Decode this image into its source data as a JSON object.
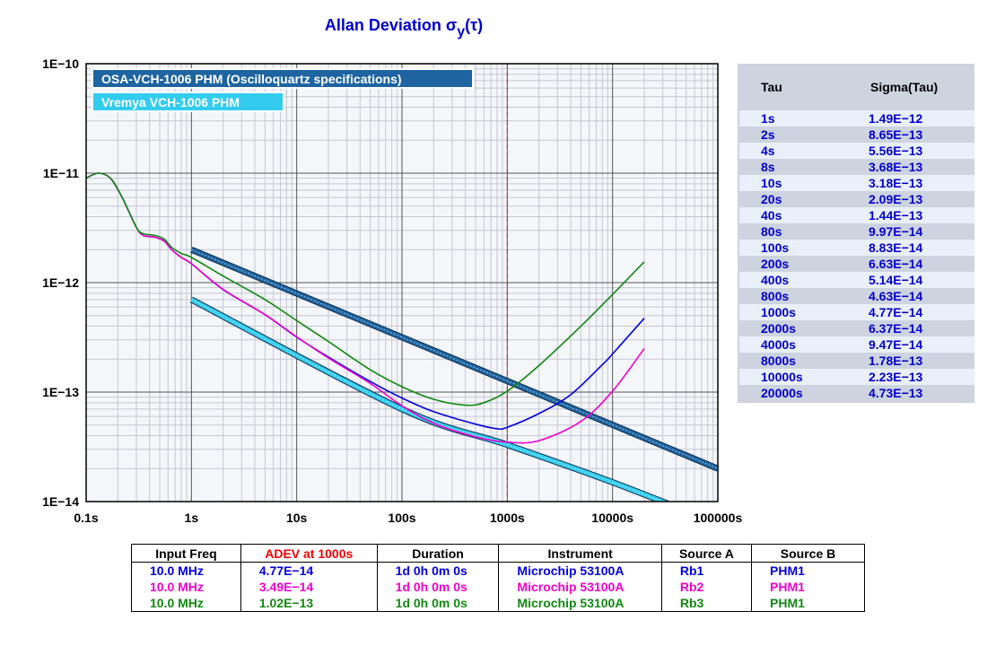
{
  "chart_data": {
    "type": "line",
    "title": "Allan Deviation",
    "title_symbol": "σ",
    "title_subscript": "y",
    "title_suffix": "(τ)",
    "x_scale": "log",
    "y_scale": "log",
    "xlim": [
      0.1,
      100000
    ],
    "ylim": [
      1e-14,
      1e-10
    ],
    "x_ticks": [
      {
        "value": 0.1,
        "label": "0.1s"
      },
      {
        "value": 1,
        "label": "1s"
      },
      {
        "value": 10,
        "label": "10s"
      },
      {
        "value": 100,
        "label": "100s"
      },
      {
        "value": 1000,
        "label": "1000s"
      },
      {
        "value": 10000,
        "label": "10000s"
      },
      {
        "value": 100000,
        "label": "100000s"
      }
    ],
    "y_ticks": [
      {
        "value": 1e-10,
        "label": "1E−10"
      },
      {
        "value": 1e-11,
        "label": "1E−11"
      },
      {
        "value": 1e-12,
        "label": "1E−12"
      },
      {
        "value": 1e-13,
        "label": "1E−13"
      },
      {
        "value": 1e-14,
        "label": "1E−14"
      }
    ],
    "grid": true,
    "marker_line_x": 1000,
    "legend_placement": "top-left",
    "legend": [
      {
        "label": "OSA-VCH-1006 PHM (Oscilloquartz specifications)",
        "color": "#1e64a0"
      },
      {
        "label": "Vremya VCH-1006 PHM",
        "color": "#33ccee"
      }
    ],
    "series": [
      {
        "name": "Rb1",
        "color": "#0000dd",
        "x": [
          0.1,
          0.13,
          0.17,
          0.22,
          0.3,
          0.35,
          0.45,
          0.55,
          0.65,
          0.8,
          1,
          2,
          5,
          10,
          20,
          50,
          100,
          200,
          500,
          800,
          1000,
          2000,
          4000,
          8000,
          10000,
          20000
        ],
        "y": [
          9e-12,
          1e-11,
          9e-12,
          6e-12,
          3.2e-12,
          2.7e-12,
          2.6e-12,
          2.4e-12,
          2e-12,
          1.7e-12,
          1.49e-12,
          8.65e-13,
          5.1e-13,
          3.18e-13,
          2.09e-13,
          1.25e-13,
          8.83e-14,
          6.63e-14,
          5.1e-14,
          4.63e-14,
          4.77e-14,
          6.37e-14,
          9.47e-14,
          1.78e-13,
          2.23e-13,
          4.73e-13
        ]
      },
      {
        "name": "Rb2",
        "color": "#ee00cc",
        "x": [
          0.1,
          0.13,
          0.17,
          0.22,
          0.3,
          0.35,
          0.45,
          0.55,
          0.65,
          0.8,
          1,
          2,
          5,
          10,
          20,
          50,
          100,
          200,
          500,
          1000,
          2000,
          5000,
          10000,
          20000
        ],
        "y": [
          9e-12,
          1e-11,
          9e-12,
          6e-12,
          3.2e-12,
          2.7e-12,
          2.6e-12,
          2.4e-12,
          2e-12,
          1.7e-12,
          1.49e-12,
          8.7e-13,
          5.1e-13,
          3.2e-13,
          2.05e-13,
          1.2e-13,
          7.5e-14,
          5.2e-14,
          3.9e-14,
          3.49e-14,
          3.6e-14,
          5.4e-14,
          1.02e-13,
          2.5e-13
        ]
      },
      {
        "name": "Rb3",
        "color": "#118811",
        "x": [
          0.1,
          0.13,
          0.17,
          0.22,
          0.3,
          0.35,
          0.45,
          0.55,
          0.65,
          0.8,
          1,
          2,
          5,
          10,
          20,
          50,
          100,
          200,
          400,
          600,
          1000,
          2000,
          5000,
          10000,
          20000
        ],
        "y": [
          9e-12,
          1e-11,
          9e-12,
          6e-12,
          3.2e-12,
          2.8e-12,
          2.7e-12,
          2.5e-12,
          2.1e-12,
          1.85e-12,
          1.7e-12,
          1.15e-12,
          7e-13,
          4.5e-13,
          2.9e-13,
          1.6e-13,
          1.12e-13,
          8.6e-14,
          7.6e-14,
          8e-14,
          1.02e-13,
          1.75e-13,
          4e-13,
          7.8e-13,
          1.55e-12
        ]
      },
      {
        "name": "OSA-VCH-1006 PHM (Oscilloquartz specifications)",
        "color": "#1e64a0",
        "band": true,
        "x": [
          1,
          100000
        ],
        "y": [
          2e-12,
          2e-14
        ]
      },
      {
        "name": "Vremya VCH-1006 PHM",
        "color": "#33ccee",
        "band": true,
        "x": [
          1,
          100,
          1000,
          10000,
          100000
        ],
        "y": [
          7e-13,
          7e-14,
          3.3e-14,
          1.5e-14,
          6.3e-15
        ]
      }
    ]
  },
  "tau_table": {
    "headers": [
      "Tau",
      "Sigma(Tau)"
    ],
    "rows": [
      {
        "tau": "1s",
        "sigma": "1.49E−12"
      },
      {
        "tau": "2s",
        "sigma": "8.65E−13"
      },
      {
        "tau": "4s",
        "sigma": "5.56E−13"
      },
      {
        "tau": "8s",
        "sigma": "3.68E−13"
      },
      {
        "tau": "10s",
        "sigma": "3.18E−13"
      },
      {
        "tau": "20s",
        "sigma": "2.09E−13"
      },
      {
        "tau": "40s",
        "sigma": "1.44E−13"
      },
      {
        "tau": "80s",
        "sigma": "9.97E−14"
      },
      {
        "tau": "100s",
        "sigma": "8.83E−14"
      },
      {
        "tau": "200s",
        "sigma": "6.63E−14"
      },
      {
        "tau": "400s",
        "sigma": "5.14E−14"
      },
      {
        "tau": "800s",
        "sigma": "4.63E−14"
      },
      {
        "tau": "1000s",
        "sigma": "4.77E−14"
      },
      {
        "tau": "2000s",
        "sigma": "6.37E−14"
      },
      {
        "tau": "4000s",
        "sigma": "9.47E−14"
      },
      {
        "tau": "8000s",
        "sigma": "1.78E−13"
      },
      {
        "tau": "10000s",
        "sigma": "2.23E−13"
      },
      {
        "tau": "20000s",
        "sigma": "4.73E−13"
      }
    ]
  },
  "info_table": {
    "headers": [
      "Input Freq",
      "ADEV at 1000s",
      "Duration",
      "Instrument",
      "Source A",
      "Source B"
    ],
    "header_colors": [
      "#000000",
      "#ee0000",
      "#000000",
      "#000000",
      "#000000",
      "#000000"
    ],
    "rows": [
      {
        "color": "#0000dd",
        "cells": [
          "10.0 MHz",
          "4.77E−14",
          "1d 0h 0m 0s",
          "Microchip 53100A",
          "Rb1",
          "PHM1"
        ]
      },
      {
        "color": "#ee00cc",
        "cells": [
          "10.0 MHz",
          "3.49E−14",
          "1d 0h 0m 0s",
          "Microchip 53100A",
          "Rb2",
          "PHM1"
        ]
      },
      {
        "color": "#118811",
        "cells": [
          "10.0 MHz",
          "1.02E−13",
          "1d 0h 0m 0s",
          "Microchip 53100A",
          "Rb3",
          "PHM1"
        ]
      }
    ]
  }
}
